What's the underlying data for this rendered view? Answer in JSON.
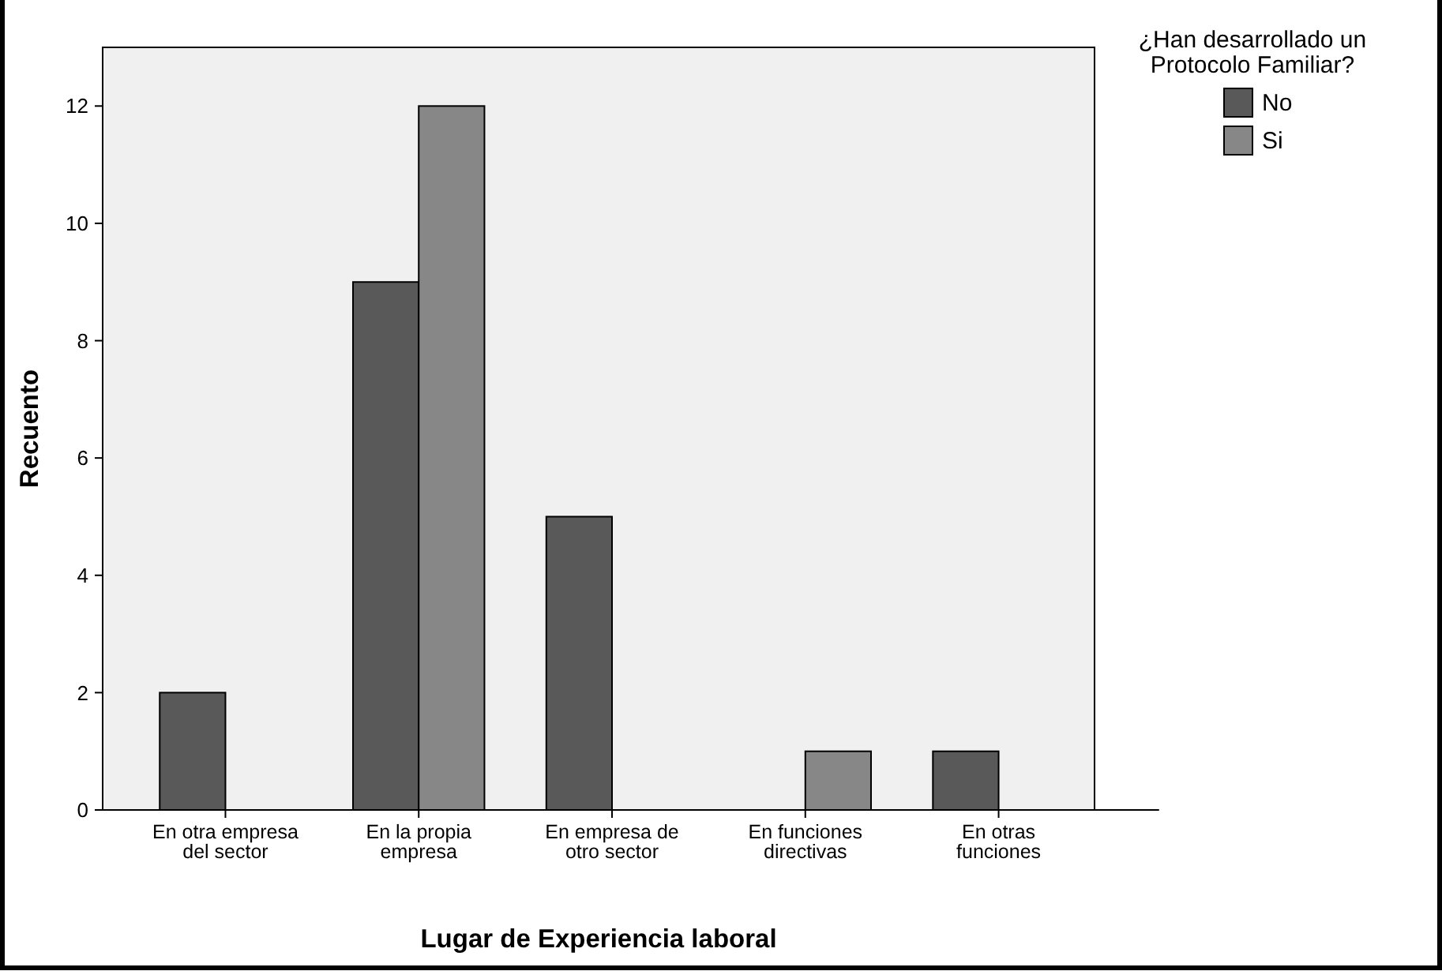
{
  "chart_data": {
    "type": "bar",
    "xlabel": "Lugar de Experiencia laboral",
    "ylabel": "Recuento",
    "legend_title": "¿Han desarrollado un Protocolo Familiar?",
    "legend": "top right",
    "categories": [
      "En otra empresa del sector",
      "En la propia empresa",
      "En empresa de otro sector",
      "En funciones directivas",
      "En otras funciones"
    ],
    "series": [
      {
        "name": "No",
        "color": "#595959",
        "values": [
          2,
          9,
          5,
          0,
          1
        ]
      },
      {
        "name": "Si",
        "color": "#878787",
        "values": [
          0,
          12,
          0,
          1,
          0
        ]
      }
    ],
    "ylim": [
      0,
      13
    ],
    "yticks": [
      0,
      2,
      4,
      6,
      8,
      10,
      12
    ],
    "grid": false
  }
}
